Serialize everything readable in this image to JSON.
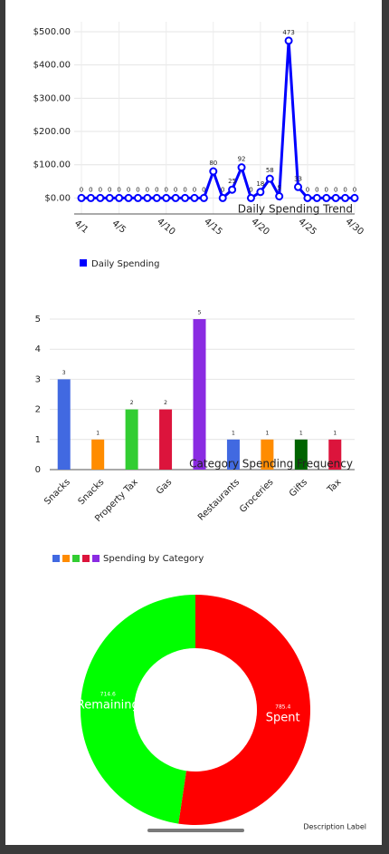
{
  "chart_data": [
    {
      "type": "line",
      "categories": [
        "4/1",
        null,
        null,
        null,
        "4/5",
        null,
        null,
        null,
        null,
        "4/10",
        null,
        null,
        null,
        null,
        "4/15",
        null,
        null,
        null,
        null,
        "4/20",
        null,
        null,
        null,
        null,
        "4/25",
        null,
        null,
        null,
        null,
        "4/30"
      ],
      "series": [
        {
          "name": "Daily Spending",
          "color": "#0000ff",
          "values": [
            0,
            0,
            0,
            0,
            0,
            0,
            0,
            0,
            0,
            0,
            0,
            0,
            0,
            0,
            80,
            0,
            25,
            92,
            0,
            18,
            58,
            5,
            473,
            33,
            0,
            0,
            0,
            0,
            0,
            0
          ]
        }
      ],
      "ylim": [
        -48,
        530
      ],
      "yticks": [
        {
          "value": 0,
          "label": "$0.00"
        },
        {
          "value": 100,
          "label": "$100.00"
        },
        {
          "value": 200,
          "label": "$200.00"
        },
        {
          "value": 300,
          "label": "$300.00"
        },
        {
          "value": 400,
          "label": "$400.00"
        },
        {
          "value": 500,
          "label": "$500.00"
        }
      ],
      "grid": true,
      "description": "Daily Spending Trend"
    },
    {
      "type": "bar",
      "categories": [
        "Snacks",
        "Snacks",
        "Property Tax",
        "Gas",
        null,
        "Restaurants",
        "Groceries",
        "Gifts",
        "Tax"
      ],
      "values": [
        3,
        1,
        2,
        2,
        5,
        1,
        1,
        1,
        1
      ],
      "colors": [
        "#4169e1",
        "#ff8c00",
        "#32cd32",
        "#dc143c",
        "#8a2be2",
        "#4169e1",
        "#ff8c00",
        "#006400",
        "#dc143c"
      ],
      "legend": "Spending by Category",
      "ylim": [
        0,
        5
      ],
      "yticks": [
        0,
        1,
        2,
        3,
        4,
        5
      ],
      "grid": true,
      "description": "Category Spending Frequency"
    },
    {
      "type": "pie",
      "categories": [
        "Spent",
        "Remaining"
      ],
      "values": [
        785.4,
        714.6
      ],
      "colors": [
        "#ff0000",
        "#00ff00"
      ],
      "description": "Description Label"
    }
  ]
}
